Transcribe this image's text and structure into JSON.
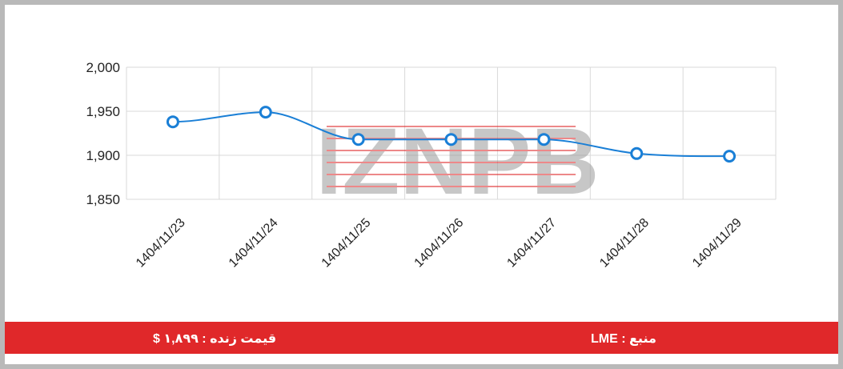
{
  "chart_data": {
    "type": "line",
    "title": "",
    "xlabel": "",
    "ylabel": "",
    "categories": [
      "1404/11/23",
      "1404/11/24",
      "1404/11/25",
      "1404/11/26",
      "1404/11/27",
      "1404/11/28",
      "1404/11/29"
    ],
    "series": [
      {
        "values": [
          1938,
          1949,
          1918,
          1918,
          1918,
          1902,
          1899
        ]
      }
    ],
    "ylim": [
      1850,
      2000
    ],
    "yticks": [
      1850,
      1900,
      1950,
      2000
    ],
    "ytick_labels": [
      "1,850",
      "1,900",
      "1,950",
      "2,000"
    ],
    "grid": true,
    "smooth": true,
    "line_color": "#1a7fd6",
    "marker_fill": "#ffffff"
  },
  "watermark": {
    "text": "IZNPB",
    "color_gray": "#9a9a9a",
    "color_red": "#e0282a"
  },
  "footer": {
    "price_label": "قیمت زنده : ۱,۸۹۹ $",
    "source_label": "منبع : LME",
    "background": "#e0282a"
  }
}
